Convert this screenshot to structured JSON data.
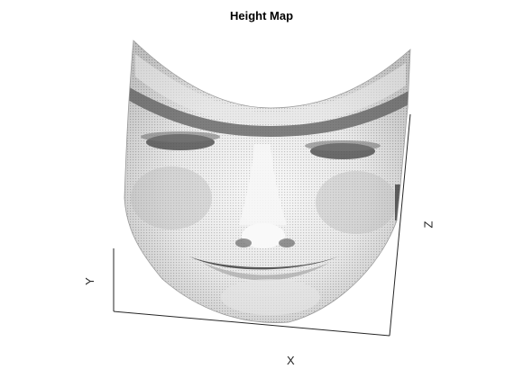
{
  "chart_data": {
    "type": "surface",
    "title": "Height Map",
    "xlabel": "X",
    "ylabel": "Y",
    "zlabel": "Z",
    "colormap": "gray",
    "grid": false,
    "legend": null,
    "description_of_surface": "3-D mesh surface rendered from a grayscale face height map"
  },
  "colors": {
    "axis": "#262626",
    "mesh_light": "#f2f2f2",
    "mesh_dark": "#3a3a3a"
  }
}
